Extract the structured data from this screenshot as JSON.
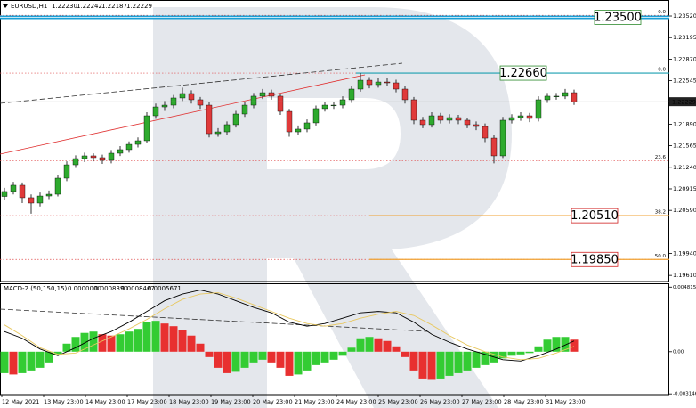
{
  "header": {
    "symbol": "EURUSD,H1",
    "quote": [
      "1.22230",
      "1.22242",
      "1.22187",
      "1.22229"
    ]
  },
  "chart_data": [
    {
      "type": "candlestick",
      "open": [
        1.208,
        1.20875,
        1.20969,
        1.20781,
        1.207,
        1.20807,
        1.20834,
        1.21076,
        1.21277,
        1.21371,
        1.21412,
        1.21385,
        1.21345,
        1.21452,
        1.21506,
        1.21586,
        1.2164,
        1.22016,
        1.2215,
        1.22177,
        1.22285,
        1.22352,
        1.22258,
        1.22177,
        1.21747,
        1.21774,
        1.21882,
        1.22043,
        1.22177,
        1.22312,
        1.22365,
        1.22312,
        1.22083,
        1.21774,
        1.21815,
        1.21909,
        1.22124,
        1.22177,
        1.22177,
        1.22258,
        1.22419,
        1.22553,
        1.22486,
        1.22526,
        1.22513,
        1.22419,
        1.22258,
        1.21949,
        1.21882,
        1.22016,
        1.21949,
        1.21989,
        1.21949,
        1.21882,
        1.21855,
        1.2168,
        1.21412,
        1.21949,
        1.21989,
        1.22016,
        1.21976,
        1.22258,
        1.22312,
        1.22312,
        1.22365
      ],
      "high": [
        1.2093,
        1.2102,
        1.2101,
        1.2083,
        1.2086,
        1.2089,
        1.2112,
        1.2133,
        1.2142,
        1.2146,
        1.2145,
        1.2143,
        1.215,
        1.2156,
        1.2163,
        1.2169,
        1.2207,
        1.222,
        1.2224,
        1.2233,
        1.2244,
        1.224,
        1.223,
        1.2222,
        1.2183,
        1.2193,
        1.2209,
        1.2223,
        1.2236,
        1.2242,
        1.2241,
        1.2235,
        1.2212,
        1.2187,
        1.2196,
        1.2217,
        1.2223,
        1.2222,
        1.2231,
        1.2247,
        1.2266,
        1.226,
        1.2258,
        1.2258,
        1.2256,
        1.2246,
        1.223,
        1.22,
        1.2207,
        1.2206,
        1.2204,
        1.2203,
        1.2199,
        1.2193,
        1.219,
        1.2172,
        1.22,
        1.2204,
        1.2207,
        1.2206,
        1.2231,
        1.2236,
        1.2236,
        1.2242,
        1.2241
      ],
      "low": [
        1.2074,
        1.2083,
        1.207,
        1.2054,
        1.2065,
        1.2076,
        1.208,
        1.2103,
        1.2123,
        1.2132,
        1.2133,
        1.2129,
        1.213,
        1.2141,
        1.2146,
        1.2154,
        1.216,
        1.2197,
        1.2209,
        1.2213,
        1.2224,
        1.222,
        1.2212,
        1.2169,
        1.217,
        1.2173,
        1.2184,
        1.22,
        1.2213,
        1.2227,
        1.2226,
        1.2203,
        1.217,
        1.2172,
        1.2177,
        1.2187,
        1.2208,
        1.2212,
        1.2213,
        1.2221,
        1.2238,
        1.2243,
        1.2244,
        1.2246,
        1.2237,
        1.222,
        1.2189,
        1.2183,
        1.2184,
        1.219,
        1.219,
        1.2189,
        1.2183,
        1.218,
        1.2162,
        1.213,
        1.2138,
        1.219,
        1.2194,
        1.2192,
        1.2193,
        1.2221,
        1.2226,
        1.2227,
        1.2218
      ],
      "close": [
        1.20875,
        1.20969,
        1.20781,
        1.207,
        1.20807,
        1.20834,
        1.21076,
        1.21277,
        1.21371,
        1.21412,
        1.21385,
        1.21345,
        1.21452,
        1.21506,
        1.21586,
        1.2164,
        1.22016,
        1.2215,
        1.22177,
        1.22285,
        1.22352,
        1.22258,
        1.22177,
        1.21747,
        1.21774,
        1.21882,
        1.22043,
        1.22177,
        1.22312,
        1.22365,
        1.22312,
        1.22083,
        1.21774,
        1.21815,
        1.21909,
        1.22124,
        1.22177,
        1.22177,
        1.22258,
        1.22419,
        1.22553,
        1.22486,
        1.22526,
        1.22513,
        1.22419,
        1.22258,
        1.21949,
        1.21882,
        1.22016,
        1.21949,
        1.21989,
        1.21949,
        1.21882,
        1.21855,
        1.2168,
        1.21412,
        1.21949,
        1.21989,
        1.22016,
        1.21976,
        1.22258,
        1.22312,
        1.22312,
        1.22365,
        1.22229
      ],
      "up_color": "#2eaa2e",
      "down_color": "#e03a3a",
      "ylim": [
        1.19518,
        1.23762
      ],
      "yticks": [
        {
          "value": 1.2352,
          "label": "1.23520"
        },
        {
          "value": 1.23195,
          "label": "1.23195"
        },
        {
          "value": 1.2287,
          "label": "1.22870"
        },
        {
          "value": 1.22545,
          "label": "1.22545"
        },
        {
          "value": 1.2189,
          "label": "1.21890"
        },
        {
          "value": 1.21565,
          "label": "1.21565"
        },
        {
          "value": 1.2124,
          "label": "1.21240"
        },
        {
          "value": 1.20915,
          "label": "1.20915"
        },
        {
          "value": 1.2059,
          "label": "1.20590"
        },
        {
          "value": 1.1994,
          "label": "1.19940"
        },
        {
          "value": 1.1961,
          "label": "1.19610"
        }
      ],
      "current_price": {
        "value": 1.22229,
        "label": "1.22229"
      },
      "levels": [
        {
          "value": 1.235,
          "label": "1.23500",
          "color": "#1a9fd6",
          "text_color": "#2e8b2e"
        },
        {
          "value": 1.2266,
          "label": "1.22660",
          "color": "#1a9fb0",
          "text_color": "#2e8b2e"
        },
        {
          "value": 1.2051,
          "label": "1.20510",
          "color": "#f0a030",
          "text_color": "#d02020"
        },
        {
          "value": 1.1985,
          "label": "1.19850",
          "color": "#f0a030",
          "text_color": "#d02020"
        }
      ],
      "fib_levels": [
        {
          "value": 1.2353,
          "label": "0.0"
        },
        {
          "value": 1.2266,
          "label": "0.0"
        },
        {
          "value": 1.2134,
          "label": "23.6"
        },
        {
          "value": 1.2051,
          "label": "38.2"
        },
        {
          "value": 1.1985,
          "label": "50.0"
        }
      ]
    },
    {
      "type": "macd",
      "title": "MACD-2 (50,150,15)",
      "readings": [
        "0.0000000",
        "0.0008390",
        "0.0008467",
        "0.0005671"
      ],
      "values": [
        -0.0016,
        -0.0017,
        -0.0016,
        -0.0014,
        -0.0012,
        -0.0008,
        -0.0002,
        0.0006,
        0.0011,
        0.0014,
        0.0015,
        0.0013,
        0.0012,
        0.0013,
        0.0015,
        0.0017,
        0.0022,
        0.0023,
        0.0021,
        0.0019,
        0.0016,
        0.0012,
        0.0006,
        -0.0004,
        -0.0012,
        -0.0016,
        -0.0015,
        -0.0012,
        -0.0008,
        -0.0006,
        -0.0008,
        -0.0012,
        -0.0018,
        -0.0017,
        -0.0014,
        -0.001,
        -0.0008,
        -0.0006,
        -0.0003,
        0.0003,
        0.001,
        0.0011,
        0.001,
        0.0008,
        0.0004,
        -0.0004,
        -0.0014,
        -0.002,
        -0.0021,
        -0.002,
        -0.0018,
        -0.0016,
        -0.0014,
        -0.0012,
        -0.001,
        -0.0008,
        -0.0005,
        -0.0003,
        -0.0002,
        -0.0001,
        0.0004,
        0.0009,
        0.0011,
        0.0011,
        0.0009
      ],
      "up_color": "#33cc33",
      "down_color": "#e83030",
      "lines": [
        {
          "color": "#000000",
          "values": [
            0.0015,
            0.001,
            0.0002,
            -0.0003,
            0.0003,
            0.001,
            0.0015,
            0.0022,
            0.003,
            0.0038,
            0.0043,
            0.0046,
            0.0043,
            0.0038,
            0.0033,
            0.0029,
            0.0022,
            0.0019,
            0.0021,
            0.0025,
            0.0029,
            0.003,
            0.0029,
            0.0022,
            0.0013,
            0.0007,
            0.0002,
            -0.0002,
            -0.0006,
            -0.0007,
            -0.0003,
            0.0002,
            0.0008
          ]
        },
        {
          "color": "#e8c860",
          "values": [
            0.002,
            0.0012,
            0.0003,
            -0.0002,
            -0.0001,
            0.0005,
            0.0011,
            0.0017,
            0.0024,
            0.0032,
            0.0039,
            0.0043,
            0.0044,
            0.004,
            0.0035,
            0.003,
            0.0025,
            0.0021,
            0.0019,
            0.0021,
            0.0025,
            0.0028,
            0.003,
            0.0027,
            0.002,
            0.0012,
            0.0005,
            0.0,
            -0.0004,
            -0.0006,
            -0.0005,
            -0.0001,
            0.0004
          ]
        }
      ],
      "ylim": [
        -0.0032,
        0.0051
      ],
      "yticks": [
        {
          "value": 0.0048155,
          "label": "0.0048155"
        },
        {
          "value": 0,
          "label": "0.00"
        },
        {
          "value": -0.003146,
          "label": "-0.003146"
        }
      ]
    }
  ],
  "time_axis": [
    "12 May 2021",
    "13 May 23:00",
    "14 May 23:00",
    "17 May 23:00",
    "18 May 23:00",
    "19 May 23:00",
    "20 May 23:00",
    "21 May 23:00",
    "24 May 23:00",
    "25 May 23:00",
    "26 May 23:00",
    "27 May 23:00",
    "28 May 23:00",
    "31 May 23:00"
  ]
}
